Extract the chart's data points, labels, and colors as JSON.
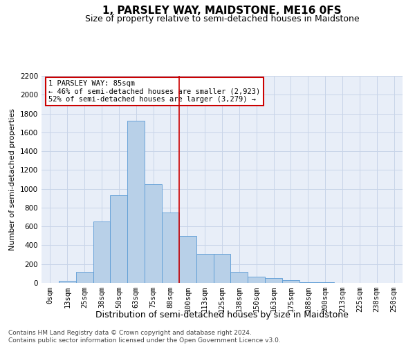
{
  "title": "1, PARSLEY WAY, MAIDSTONE, ME16 0FS",
  "subtitle": "Size of property relative to semi-detached houses in Maidstone",
  "xlabel": "Distribution of semi-detached houses by size in Maidstone",
  "ylabel": "Number of semi-detached properties",
  "footer_line1": "Contains HM Land Registry data © Crown copyright and database right 2024.",
  "footer_line2": "Contains public sector information licensed under the Open Government Licence v3.0.",
  "bar_labels": [
    "0sqm",
    "13sqm",
    "25sqm",
    "38sqm",
    "50sqm",
    "63sqm",
    "75sqm",
    "88sqm",
    "100sqm",
    "113sqm",
    "125sqm",
    "138sqm",
    "150sqm",
    "163sqm",
    "175sqm",
    "188sqm",
    "200sqm",
    "213sqm",
    "225sqm",
    "238sqm",
    "250sqm"
  ],
  "bar_values": [
    0,
    20,
    120,
    650,
    930,
    1720,
    1050,
    750,
    500,
    310,
    310,
    120,
    65,
    48,
    30,
    10,
    5,
    2,
    0,
    0,
    0
  ],
  "bar_color": "#b8d0e8",
  "bar_edge_color": "#5b9bd5",
  "annotation_text": "1 PARSLEY WAY: 85sqm\n← 46% of semi-detached houses are smaller (2,923)\n52% of semi-detached houses are larger (3,279) →",
  "annotation_box_color": "#ffffff",
  "annotation_box_edge_color": "#cc0000",
  "vline_x": 7.5,
  "vline_color": "#cc0000",
  "ylim": [
    0,
    2200
  ],
  "yticks": [
    0,
    200,
    400,
    600,
    800,
    1000,
    1200,
    1400,
    1600,
    1800,
    2000,
    2200
  ],
  "grid_color": "#c8d4e8",
  "background_color": "#e8eef8",
  "title_fontsize": 11,
  "subtitle_fontsize": 9,
  "tick_fontsize": 7.5,
  "ylabel_fontsize": 8,
  "xlabel_fontsize": 9,
  "footer_fontsize": 6.5
}
